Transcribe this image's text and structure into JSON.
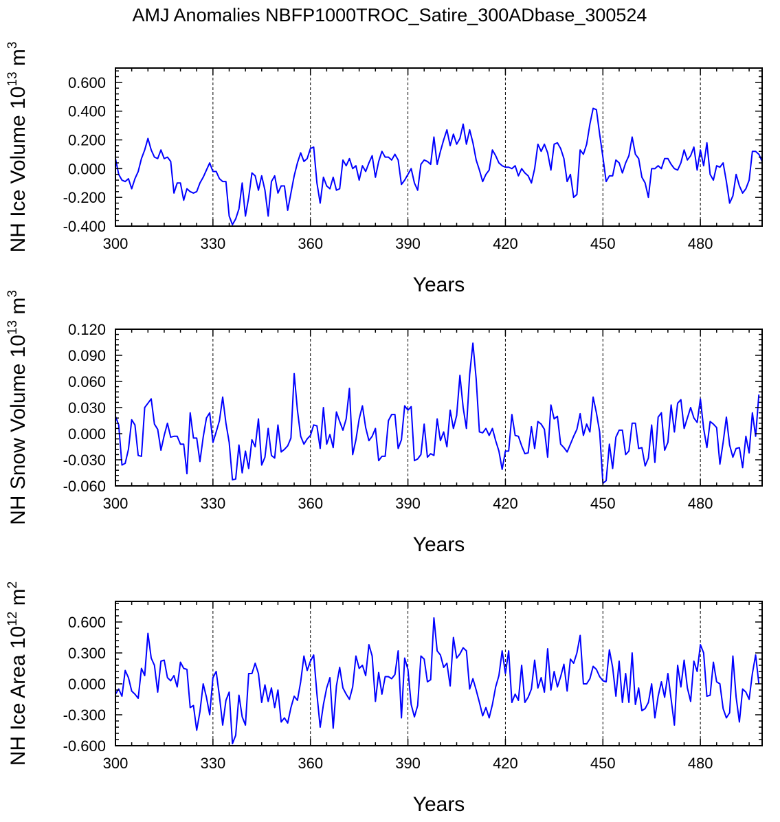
{
  "title": "AMJ Anomalies NBFP1000TROC_Satire_300ADbase_300524",
  "colors": {
    "line": "#0000ff",
    "axis": "#000000",
    "background": "#ffffff"
  },
  "x_tick_labels": [
    "300",
    "330",
    "360",
    "390",
    "420",
    "450",
    "480"
  ],
  "chart_data": [
    {
      "type": "line",
      "ylabel": {
        "prefix": "NH Ice Volume 10",
        "exp": "13",
        "mid": " m",
        "unit_exp": "3"
      },
      "xlabel": "Years",
      "xlim": [
        300,
        499
      ],
      "ylim": [
        -0.4,
        0.7
      ],
      "yticks": [
        -0.4,
        -0.2,
        0.0,
        0.2,
        0.4,
        0.6
      ],
      "ytick_labels": [
        "-0.400",
        "-0.200",
        "0.000",
        "0.200",
        "0.400",
        "0.600"
      ],
      "vlines": [
        330,
        360,
        390,
        420,
        450,
        480
      ],
      "series": [
        {
          "name": "NH Ice Volume",
          "x_start": 300,
          "values": [
            0.07,
            -0.04,
            -0.08,
            -0.09,
            -0.07,
            -0.14,
            -0.07,
            -0.02,
            0.07,
            0.13,
            0.21,
            0.13,
            0.08,
            0.07,
            0.13,
            0.07,
            0.08,
            0.05,
            -0.17,
            -0.1,
            -0.1,
            -0.22,
            -0.14,
            -0.16,
            -0.17,
            -0.16,
            -0.1,
            -0.06,
            -0.01,
            0.04,
            -0.02,
            -0.02,
            -0.07,
            -0.09,
            -0.09,
            -0.33,
            -0.39,
            -0.35,
            -0.28,
            -0.1,
            -0.33,
            -0.2,
            -0.03,
            -0.05,
            -0.15,
            -0.05,
            -0.15,
            -0.33,
            -0.09,
            -0.05,
            -0.17,
            -0.12,
            -0.12,
            -0.29,
            -0.17,
            -0.05,
            0.04,
            0.11,
            0.05,
            0.07,
            0.14,
            0.15,
            -0.1,
            -0.24,
            -0.06,
            -0.12,
            -0.14,
            -0.06,
            -0.15,
            -0.14,
            0.06,
            0.02,
            0.07,
            0.0,
            0.02,
            -0.08,
            0.02,
            -0.02,
            0.04,
            0.09,
            -0.06,
            0.05,
            0.12,
            0.08,
            0.08,
            0.06,
            0.1,
            0.06,
            -0.11,
            -0.08,
            -0.04,
            0.0,
            -0.1,
            -0.15,
            0.03,
            0.06,
            0.05,
            0.03,
            0.22,
            0.03,
            0.12,
            0.2,
            0.27,
            0.16,
            0.24,
            0.17,
            0.21,
            0.31,
            0.17,
            0.27,
            0.18,
            0.06,
            -0.01,
            -0.09,
            -0.04,
            -0.01,
            0.13,
            0.09,
            0.04,
            0.02,
            0.01,
            0.01,
            0.0,
            0.02,
            -0.05,
            0.0,
            -0.03,
            -0.05,
            -0.1,
            0.0,
            0.17,
            0.12,
            0.17,
            0.11,
            -0.01,
            0.17,
            0.18,
            0.14,
            0.07,
            -0.09,
            -0.04,
            -0.2,
            -0.18,
            0.13,
            0.1,
            0.17,
            0.31,
            0.42,
            0.41,
            0.24,
            0.08,
            -0.09,
            -0.05,
            -0.05,
            0.06,
            0.04,
            -0.03,
            0.04,
            0.09,
            0.22,
            0.1,
            0.07,
            -0.06,
            -0.1,
            -0.2,
            0.0,
            0.0,
            0.02,
            0.0,
            0.07,
            0.07,
            0.03,
            0.0,
            -0.01,
            0.04,
            0.13,
            0.06,
            0.09,
            0.15,
            -0.01,
            0.13,
            0.02,
            0.18,
            -0.04,
            -0.08,
            0.02,
            0.01,
            0.04,
            -0.09,
            -0.24,
            -0.19,
            -0.04,
            -0.12,
            -0.17,
            -0.14,
            -0.08,
            0.12,
            0.12,
            0.1,
            0.05
          ]
        }
      ]
    },
    {
      "type": "line",
      "ylabel": {
        "prefix": "NH Snow Volume 10",
        "exp": "13",
        "mid": " m",
        "unit_exp": "3"
      },
      "xlabel": "Years",
      "xlim": [
        300,
        499
      ],
      "ylim": [
        -0.06,
        0.12
      ],
      "yticks": [
        -0.06,
        -0.03,
        0.0,
        0.03,
        0.06,
        0.09,
        0.12
      ],
      "ytick_labels": [
        "-0.060",
        "-0.030",
        "0.000",
        "0.030",
        "0.060",
        "0.090",
        "0.120"
      ],
      "vlines": [
        330,
        360,
        390,
        420,
        450,
        480
      ],
      "series": [
        {
          "name": "NH Snow Volume",
          "x_start": 300,
          "values": [
            0.02,
            0.01,
            -0.036,
            -0.034,
            -0.018,
            0.016,
            0.01,
            -0.025,
            -0.026,
            0.03,
            0.035,
            0.04,
            0.011,
            0.005,
            -0.019,
            -0.002,
            0.012,
            -0.004,
            -0.003,
            -0.003,
            -0.012,
            -0.012,
            -0.046,
            0.024,
            -0.005,
            -0.005,
            -0.032,
            -0.004,
            0.018,
            0.024,
            -0.01,
            0.002,
            0.015,
            0.042,
            0.012,
            -0.01,
            -0.053,
            -0.052,
            -0.013,
            -0.045,
            -0.02,
            -0.04,
            -0.007,
            -0.015,
            0.017,
            -0.036,
            -0.027,
            0.006,
            -0.025,
            -0.028,
            0.01,
            -0.021,
            -0.018,
            -0.014,
            -0.005,
            0.069,
            0.027,
            -0.003,
            -0.012,
            -0.006,
            -0.002,
            0.01,
            0.009,
            -0.017,
            0.03,
            -0.012,
            -0.001,
            -0.016,
            0.025,
            0.014,
            0.004,
            0.017,
            0.052,
            -0.024,
            -0.007,
            0.017,
            0.032,
            0.007,
            -0.008,
            -0.003,
            0.006,
            -0.031,
            -0.026,
            -0.026,
            0.015,
            0.022,
            0.022,
            -0.017,
            -0.007,
            0.032,
            0.027,
            0.031,
            -0.031,
            -0.029,
            -0.024,
            0.011,
            -0.027,
            -0.023,
            -0.025,
            0.017,
            -0.008,
            0.002,
            -0.015,
            0.027,
            0.006,
            0.021,
            0.067,
            0.03,
            0.006,
            0.068,
            0.104,
            0.063,
            0.002,
            0.001,
            0.006,
            -0.002,
            0.006,
            -0.008,
            -0.02,
            -0.041,
            -0.02,
            -0.02,
            0.022,
            -0.002,
            -0.003,
            -0.014,
            -0.023,
            -0.022,
            0.008,
            -0.017,
            0.014,
            0.011,
            0.005,
            -0.027,
            0.033,
            0.017,
            0.02,
            -0.012,
            -0.016,
            -0.021,
            -0.012,
            -0.003,
            0.005,
            0.023,
            -0.002,
            0.011,
            0.002,
            0.042,
            0.024,
            0.002,
            -0.057,
            -0.054,
            -0.012,
            -0.04,
            -0.004,
            0.004,
            0.004,
            -0.024,
            -0.02,
            0.012,
            0.012,
            -0.017,
            -0.016,
            -0.037,
            -0.028,
            0.01,
            -0.033,
            0.019,
            0.024,
            -0.019,
            -0.01,
            0.033,
            0.002,
            0.035,
            0.039,
            0.006,
            0.018,
            0.03,
            0.018,
            0.013,
            0.04,
            0.006,
            -0.016,
            0.014,
            0.011,
            0.007,
            -0.035,
            -0.01,
            0.019,
            -0.013,
            -0.027,
            -0.017,
            -0.016,
            -0.039,
            -0.003,
            -0.022,
            0.024,
            -0.003,
            0.045
          ]
        }
      ]
    },
    {
      "type": "line",
      "ylabel": {
        "prefix": "NH Ice Area 10",
        "exp": "12",
        "mid": " m",
        "unit_exp": "2"
      },
      "xlabel": "Years",
      "xlim": [
        300,
        499
      ],
      "ylim": [
        -0.6,
        0.8
      ],
      "yticks": [
        -0.6,
        -0.3,
        0.0,
        0.3,
        0.6
      ],
      "ytick_labels": [
        "-0.600",
        "-0.300",
        "0.000",
        "0.300",
        "0.600"
      ],
      "vlines": [
        330,
        360,
        390,
        420,
        450,
        480
      ],
      "series": [
        {
          "name": "NH Ice Area",
          "x_start": 300,
          "values": [
            -0.1,
            -0.05,
            -0.12,
            0.13,
            0.06,
            -0.07,
            -0.1,
            -0.14,
            0.15,
            0.08,
            0.49,
            0.25,
            0.18,
            -0.08,
            0.22,
            0.23,
            0.06,
            0.03,
            0.08,
            -0.03,
            0.21,
            0.15,
            0.14,
            -0.23,
            -0.21,
            -0.45,
            -0.27,
            0.0,
            -0.13,
            -0.3,
            0.06,
            0.12,
            -0.12,
            -0.4,
            -0.16,
            -0.08,
            -0.58,
            -0.5,
            -0.11,
            -0.32,
            -0.4,
            0.1,
            0.1,
            0.2,
            0.1,
            -0.18,
            -0.01,
            -0.17,
            -0.04,
            -0.23,
            -0.06,
            -0.37,
            -0.33,
            -0.38,
            -0.23,
            -0.12,
            -0.16,
            0.02,
            0.27,
            0.13,
            0.22,
            0.28,
            -0.1,
            -0.42,
            -0.2,
            -0.04,
            0.06,
            -0.43,
            -0.02,
            0.16,
            -0.04,
            -0.1,
            -0.15,
            -0.03,
            0.27,
            0.15,
            0.18,
            0.08,
            0.38,
            0.27,
            -0.17,
            0.11,
            -0.1,
            0.07,
            0.07,
            0.05,
            0.09,
            0.32,
            -0.33,
            0.25,
            0.14,
            -0.2,
            -0.32,
            -0.21,
            0.27,
            0.24,
            0.02,
            0.04,
            0.64,
            0.32,
            0.28,
            0.16,
            0.2,
            -0.02,
            0.45,
            0.25,
            0.29,
            0.35,
            0.32,
            -0.05,
            0.05,
            -0.06,
            -0.18,
            -0.31,
            -0.23,
            -0.33,
            -0.2,
            -0.03,
            0.08,
            0.32,
            0.1,
            0.32,
            -0.18,
            -0.1,
            -0.16,
            0.18,
            -0.18,
            -0.13,
            -0.05,
            0.23,
            -0.04,
            0.06,
            -0.08,
            0.34,
            -0.06,
            0.12,
            -0.03,
            0.07,
            0.19,
            -0.07,
            0.24,
            0.2,
            0.3,
            0.47,
            0.0,
            0.0,
            0.05,
            0.17,
            0.14,
            0.07,
            0.03,
            0.02,
            0.33,
            0.16,
            -0.12,
            0.22,
            -0.18,
            0.1,
            -0.18,
            0.3,
            -0.2,
            -0.04,
            -0.26,
            -0.24,
            -0.18,
            0.0,
            -0.33,
            -0.12,
            0.02,
            -0.13,
            0.1,
            -0.15,
            -0.4,
            0.18,
            -0.03,
            0.23,
            -0.04,
            -0.17,
            0.22,
            0.12,
            0.38,
            0.3,
            -0.12,
            -0.11,
            0.21,
            0.02,
            0.0,
            -0.24,
            -0.33,
            -0.28,
            0.27,
            -0.13,
            -0.37,
            -0.05,
            -0.08,
            -0.15,
            0.1,
            0.28,
            0.0
          ]
        }
      ]
    }
  ]
}
